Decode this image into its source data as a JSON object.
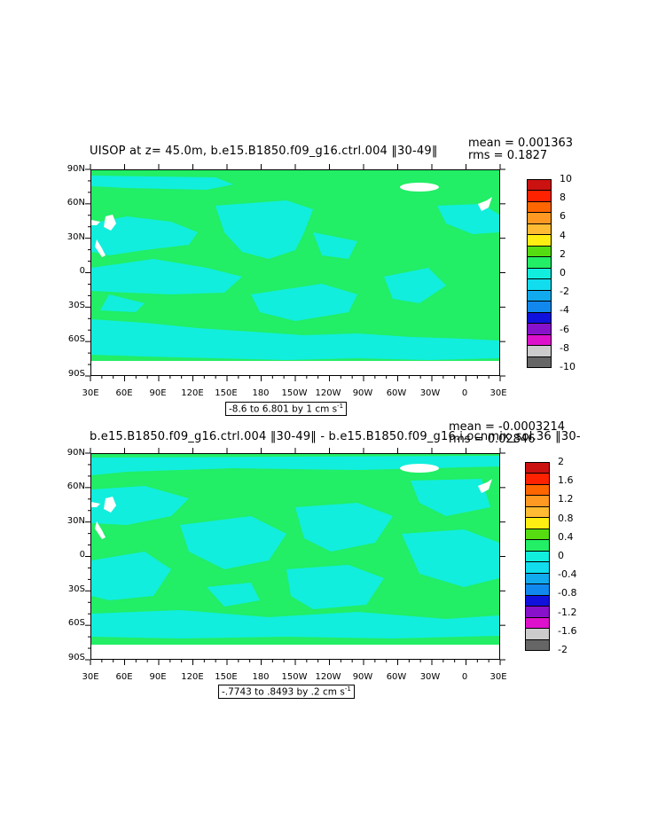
{
  "colors": {
    "ocean_green": "#22ee66",
    "cyan_pos": "#11eedd",
    "land": "#ffffff",
    "scale": [
      "#666666",
      "#cccccc",
      "#dd11cc",
      "#8811cc",
      "#1111dd",
      "#1188ee",
      "#11aaee",
      "#11ddee",
      "#11eedd",
      "#22ee66",
      "#55dd11",
      "#ffee11",
      "#ffbb33",
      "#ff9922",
      "#ff6600",
      "#ff2200",
      "#cc1111"
    ]
  },
  "chart_data": [
    {
      "type": "heatmap",
      "title": "UISOP at z=  45.0m, b.e15.B1850.f09_g16.ctrl.004 ‖30-49‖",
      "mean_label": "mean = 0.001363",
      "rms_label": "rms = 0.1827",
      "y_ticks": [
        "90N",
        "60N",
        "30N",
        "0",
        "30S",
        "60S",
        "90S"
      ],
      "x_ticks": [
        "30E",
        "60E",
        "90E",
        "120E",
        "150E",
        "180",
        "150W",
        "120W",
        "90W",
        "60W",
        "30W",
        "0",
        "30E"
      ],
      "range_label": "-8.6 to 6.801 by 1 cm s",
      "range_unit_sup": "-1",
      "colorbar_labels": [
        "10",
        "8",
        "6",
        "4",
        "2",
        "0",
        "-2",
        "-4",
        "-6",
        "-8",
        "-10"
      ],
      "colorbar_levels": [
        -10,
        -8,
        -6,
        -4,
        -2,
        0,
        2,
        4,
        6,
        8,
        10
      ],
      "data_min": -8.6,
      "data_max": 6.801,
      "contour_interval": 1
    },
    {
      "type": "heatmap",
      "title": "b.e15.B1850.f09_g16.ctrl.004 ‖30-49‖ - b.e15.B1850.f09_g16.i.ocnmix_sol.36 ‖30-",
      "mean_label": "mean = -0.0003214",
      "rms_label": "rms = 0.02846",
      "y_ticks": [
        "90N",
        "60N",
        "30N",
        "0",
        "30S",
        "60S",
        "90S"
      ],
      "x_ticks": [
        "30E",
        "60E",
        "90E",
        "120E",
        "150E",
        "180",
        "150W",
        "120W",
        "90W",
        "60W",
        "30W",
        "0",
        "30E"
      ],
      "range_label": "-.7743 to .8493 by .2 cm s",
      "range_unit_sup": "-1",
      "colorbar_labels": [
        "2",
        "1.6",
        "1.2",
        "0.8",
        "0.4",
        "0",
        "-0.4",
        "-0.8",
        "-1.2",
        "-1.6",
        "-2"
      ],
      "colorbar_levels": [
        -2,
        -1.6,
        -1.2,
        -0.8,
        -0.4,
        0,
        0.4,
        0.8,
        1.2,
        1.6,
        2
      ],
      "data_min": -0.7743,
      "data_max": 0.8493,
      "contour_interval": 0.2
    }
  ]
}
